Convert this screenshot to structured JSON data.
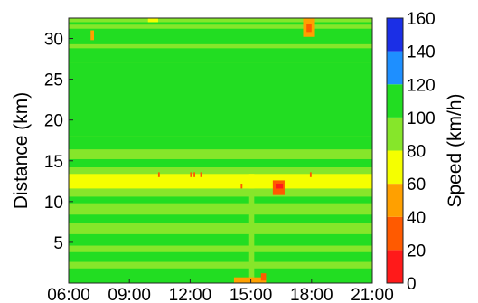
{
  "chart_data": {
    "type": "heatmap",
    "title": "",
    "xlabel": "",
    "ylabel": "Distance (km)",
    "x_ticks": [
      "06:00",
      "09:00",
      "12:00",
      "15:00",
      "18:00",
      "21:00"
    ],
    "x_range": [
      "06:00",
      "21:00"
    ],
    "y_ticks": [
      5,
      10,
      15,
      20,
      25,
      30
    ],
    "y_range_km": [
      0,
      32.5
    ],
    "colorbar": {
      "label": "Speed (km/h)",
      "ticks": [
        0,
        20,
        40,
        60,
        80,
        100,
        120,
        140,
        160
      ],
      "range": [
        0,
        160
      ],
      "bands": [
        {
          "min": 0,
          "max": 20,
          "color": "#ff1a1a"
        },
        {
          "min": 20,
          "max": 40,
          "color": "#ff5a00"
        },
        {
          "min": 40,
          "max": 60,
          "color": "#ffa000"
        },
        {
          "min": 60,
          "max": 80,
          "color": "#f5ff00"
        },
        {
          "min": 80,
          "max": 100,
          "color": "#86e62a"
        },
        {
          "min": 100,
          "max": 120,
          "color": "#22dd22"
        },
        {
          "min": 120,
          "max": 140,
          "color": "#1e8fff"
        },
        {
          "min": 140,
          "max": 160,
          "color": "#1b2fe6"
        }
      ]
    },
    "speed_regions": [
      {
        "x0": "06:00",
        "x1": "21:00",
        "y0": 0,
        "y1": 32.5,
        "speed": 90
      },
      {
        "x0": "06:00",
        "x1": "21:00",
        "y0": 0,
        "y1": 1.8,
        "speed": 100
      },
      {
        "x0": "06:00",
        "x1": "21:00",
        "y0": 2.6,
        "y1": 3.8,
        "speed": 100
      },
      {
        "x0": "06:00",
        "x1": "21:00",
        "y0": 4.6,
        "y1": 6.0,
        "speed": 100
      },
      {
        "x0": "06:00",
        "x1": "21:00",
        "y0": 7.4,
        "y1": 8.4,
        "speed": 100
      },
      {
        "x0": "06:00",
        "x1": "21:00",
        "y0": 9.8,
        "y1": 10.6,
        "speed": 100
      },
      {
        "x0": "06:00",
        "x1": "21:00",
        "y0": 11.0,
        "y1": 11.6,
        "speed": 88
      },
      {
        "x0": "06:00",
        "x1": "21:00",
        "y0": 11.6,
        "y1": 13.4,
        "speed": 70
      },
      {
        "x0": "06:00",
        "x1": "21:00",
        "y0": 13.4,
        "y1": 14.2,
        "speed": 88
      },
      {
        "x0": "06:00",
        "x1": "21:00",
        "y0": 14.2,
        "y1": 15.2,
        "speed": 100
      },
      {
        "x0": "06:00",
        "x1": "21:00",
        "y0": 16.4,
        "y1": 18.0,
        "speed": 100
      },
      {
        "x0": "06:00",
        "x1": "21:00",
        "y0": 18.0,
        "y1": 27.0,
        "speed": 100
      },
      {
        "x0": "06:00",
        "x1": "21:00",
        "y0": 27.0,
        "y1": 32.0,
        "speed": 100
      },
      {
        "x0": "06:00",
        "x1": "21:00",
        "y0": 28.8,
        "y1": 29.3,
        "speed": 88
      },
      {
        "x0": "06:00",
        "x1": "21:00",
        "y0": 31.2,
        "y1": 31.7,
        "speed": 88
      },
      {
        "x0": "14:55",
        "x1": "15:10",
        "y0": 0,
        "y1": 11.5,
        "speed": 88
      },
      {
        "x0": "14:55",
        "x1": "15:10",
        "y0": 11.6,
        "y1": 13.4,
        "speed": 66
      },
      {
        "x0": "16:05",
        "x1": "16:40",
        "y0": 10.8,
        "y1": 12.6,
        "speed": 30
      },
      {
        "x0": "16:15",
        "x1": "16:35",
        "y0": 11.6,
        "y1": 12.2,
        "speed": 10
      },
      {
        "x0": "14:10",
        "x1": "15:45",
        "y0": 0,
        "y1": 0.7,
        "speed": 45
      },
      {
        "x0": "15:30",
        "x1": "15:45",
        "y0": 0.3,
        "y1": 1.2,
        "speed": 20
      },
      {
        "x0": "17:35",
        "x1": "18:10",
        "y0": 30.2,
        "y1": 32.5,
        "speed": 55
      },
      {
        "x0": "17:45",
        "x1": "18:00",
        "y0": 30.8,
        "y1": 31.8,
        "speed": 35
      },
      {
        "x0": "07:05",
        "x1": "07:15",
        "y0": 29.8,
        "y1": 31.0,
        "speed": 55
      },
      {
        "x0": "09:55",
        "x1": "10:25",
        "y0": 32.0,
        "y1": 32.5,
        "speed": 60
      },
      {
        "x0": "12:00",
        "x1": "12:05",
        "y0": 13.0,
        "y1": 13.6,
        "speed": 35
      },
      {
        "x0": "12:10",
        "x1": "12:15",
        "y0": 13.0,
        "y1": 13.6,
        "speed": 35
      },
      {
        "x0": "12:30",
        "x1": "12:35",
        "y0": 13.0,
        "y1": 13.6,
        "speed": 35
      },
      {
        "x0": "10:25",
        "x1": "10:30",
        "y0": 13.0,
        "y1": 13.6,
        "speed": 35
      },
      {
        "x0": "17:55",
        "x1": "18:00",
        "y0": 13.0,
        "y1": 13.6,
        "speed": 35
      },
      {
        "x0": "14:30",
        "x1": "14:35",
        "y0": 11.6,
        "y1": 12.2,
        "speed": 35
      }
    ]
  }
}
